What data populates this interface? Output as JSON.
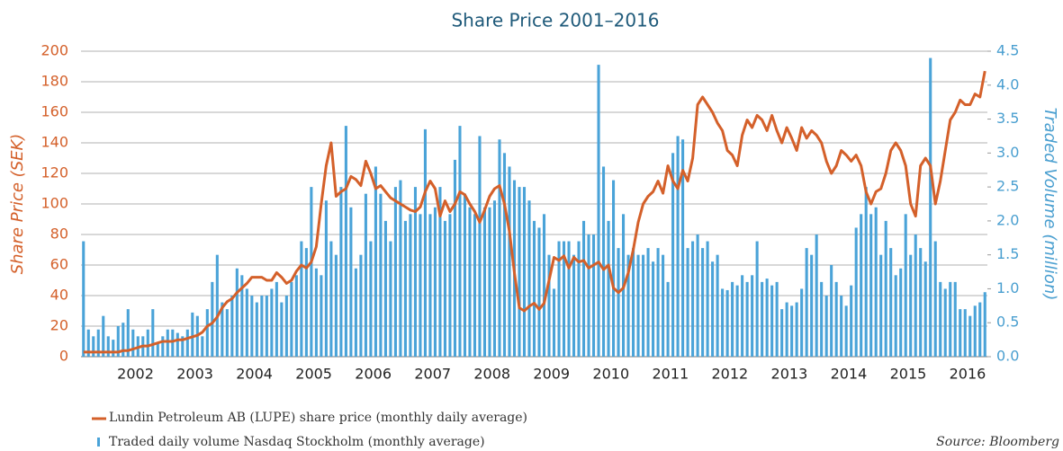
{
  "chart_data": {
    "type": "combo",
    "title": "Share Price 2001–2016",
    "ylabel": "Share Price (SEK)",
    "y2label": "Traded Volume (million)",
    "annotation": "Source: Bloomberg",
    "categories": [
      null,
      null,
      null,
      null,
      null,
      null,
      null,
      null,
      null,
      null,
      null,
      "2002",
      null,
      null,
      null,
      null,
      null,
      null,
      null,
      null,
      null,
      null,
      null,
      "2003",
      null,
      null,
      null,
      null,
      null,
      null,
      null,
      null,
      null,
      null,
      null,
      "2004",
      null,
      null,
      null,
      null,
      null,
      null,
      null,
      null,
      null,
      null,
      null,
      "2005",
      null,
      null,
      null,
      null,
      null,
      null,
      null,
      null,
      null,
      null,
      null,
      "2006",
      null,
      null,
      null,
      null,
      null,
      null,
      null,
      null,
      null,
      null,
      null,
      "2007",
      null,
      null,
      null,
      null,
      null,
      null,
      null,
      null,
      null,
      null,
      null,
      "2008",
      null,
      null,
      null,
      null,
      null,
      null,
      null,
      null,
      null,
      null,
      null,
      "2009",
      null,
      null,
      null,
      null,
      null,
      null,
      null,
      null,
      null,
      null,
      null,
      "2010",
      null,
      null,
      null,
      null,
      null,
      null,
      null,
      null,
      null,
      null,
      null,
      "2011",
      null,
      null,
      null,
      null,
      null,
      null,
      null,
      null,
      null,
      null,
      null,
      "2012",
      null,
      null,
      null,
      null,
      null,
      null,
      null,
      null,
      null,
      null,
      null,
      "2013",
      null,
      null,
      null,
      null,
      null,
      null,
      null,
      null,
      null,
      null,
      null,
      "2014",
      null,
      null,
      null,
      null,
      null,
      null,
      null,
      null,
      null,
      null,
      null,
      "2015",
      null,
      null,
      null,
      null,
      null,
      null,
      null,
      null,
      null,
      null,
      null,
      "2016",
      null,
      null,
      null
    ],
    "series": [
      {
        "name": "Lundin Petroleum AB (LUPE) share price (monthly daily average)",
        "type": "line",
        "axis": "y",
        "color": "#d4602a",
        "values": [
          3,
          3,
          3,
          3,
          3,
          3,
          3,
          3,
          4,
          4,
          5,
          6,
          7,
          7,
          8,
          9,
          10,
          10,
          10,
          11,
          11,
          12,
          13,
          14,
          16,
          20,
          22,
          26,
          32,
          36,
          38,
          42,
          45,
          48,
          52,
          52,
          52,
          50,
          50,
          55,
          52,
          48,
          50,
          56,
          60,
          58,
          62,
          72,
          100,
          125,
          140,
          105,
          108,
          110,
          118,
          116,
          112,
          128,
          120,
          110,
          112,
          108,
          104,
          102,
          100,
          98,
          96,
          95,
          98,
          108,
          115,
          110,
          92,
          102,
          95,
          100,
          108,
          106,
          100,
          95,
          88,
          96,
          105,
          110,
          112,
          100,
          82,
          55,
          32,
          30,
          33,
          35,
          31,
          35,
          50,
          65,
          63,
          66,
          58,
          65,
          62,
          63,
          58,
          60,
          62,
          57,
          60,
          45,
          42,
          45,
          55,
          70,
          88,
          100,
          105,
          108,
          115,
          107,
          125,
          115,
          110,
          122,
          115,
          130,
          165,
          170,
          165,
          160,
          153,
          148,
          135,
          132,
          125,
          145,
          155,
          150,
          158,
          155,
          148,
          158,
          148,
          140,
          150,
          143,
          135,
          150,
          143,
          148,
          145,
          140,
          128,
          120,
          125,
          135,
          132,
          128,
          132,
          125,
          108,
          100,
          108,
          110,
          120,
          135,
          140,
          135,
          125,
          100,
          92,
          125,
          130,
          125,
          100,
          115,
          135,
          155,
          160,
          168,
          165,
          165,
          172,
          170,
          187
        ]
      },
      {
        "name": "Traded daily volume Nasdaq Stockholm (monthly average)",
        "type": "bar",
        "axis": "y2",
        "color": "#4aa3d8",
        "values": [
          1.7,
          0.4,
          0.3,
          0.4,
          0.6,
          0.3,
          0.25,
          0.45,
          0.5,
          0.7,
          0.4,
          0.3,
          0.3,
          0.4,
          0.7,
          0.2,
          0.3,
          0.4,
          0.4,
          0.35,
          0.3,
          0.4,
          0.65,
          0.6,
          0.3,
          0.7,
          1.1,
          1.5,
          0.8,
          0.7,
          0.9,
          1.3,
          1.2,
          1.0,
          0.9,
          0.8,
          0.9,
          0.9,
          1.0,
          1.1,
          0.8,
          0.9,
          1.1,
          1.2,
          1.7,
          1.6,
          2.5,
          1.3,
          1.2,
          2.3,
          1.7,
          1.5,
          2.5,
          3.4,
          2.2,
          1.3,
          1.5,
          2.4,
          1.7,
          2.8,
          2.4,
          2.0,
          1.7,
          2.5,
          2.6,
          2.0,
          2.1,
          2.5,
          2.1,
          3.35,
          2.1,
          2.2,
          2.5,
          2.0,
          2.1,
          2.9,
          3.4,
          2.4,
          2.2,
          2.1,
          3.25,
          2.2,
          2.2,
          2.3,
          3.2,
          3.0,
          2.8,
          2.6,
          2.5,
          2.5,
          2.3,
          2.0,
          1.9,
          2.1,
          1.5,
          1.0,
          1.7,
          1.7,
          1.7,
          1.5,
          1.7,
          2.0,
          1.8,
          1.8,
          4.3,
          2.8,
          2.0,
          2.6,
          1.6,
          2.1,
          1.5,
          1.6,
          1.5,
          1.5,
          1.6,
          1.4,
          1.6,
          1.5,
          1.1,
          3.0,
          3.25,
          3.2,
          1.6,
          1.7,
          1.8,
          1.6,
          1.7,
          1.4,
          1.5,
          1.0,
          0.98,
          1.1,
          1.05,
          1.2,
          1.1,
          1.2,
          1.7,
          1.1,
          1.15,
          1.05,
          1.1,
          0.7,
          0.8,
          0.75,
          0.8,
          1.0,
          1.6,
          1.5,
          1.8,
          1.1,
          0.9,
          1.35,
          1.1,
          0.9,
          0.75,
          1.05,
          1.9,
          2.1,
          2.5,
          2.1,
          2.2,
          1.5,
          2.0,
          1.6,
          1.2,
          1.3,
          2.1,
          1.5,
          1.8,
          1.6,
          1.4,
          4.4,
          1.7,
          1.1,
          1.0,
          1.1,
          1.1,
          0.7,
          0.7,
          0.6,
          0.75,
          0.8,
          0.95
        ]
      }
    ],
    "ylim": [
      0,
      200
    ],
    "yticks": [
      0,
      20,
      40,
      60,
      80,
      100,
      120,
      140,
      160,
      180,
      200
    ],
    "y2lim": [
      0,
      4.5
    ],
    "y2ticks": [
      {
        "value": 0,
        "label": "0.0"
      },
      0.5,
      {
        "value": 1,
        "label": "1.0"
      },
      1.5,
      {
        "value": 2,
        "label": "2.0"
      },
      2.5,
      {
        "value": 3,
        "label": "3.0"
      },
      3.5,
      {
        "value": 4,
        "label": "4.0"
      },
      4.5
    ],
    "grid": true
  }
}
